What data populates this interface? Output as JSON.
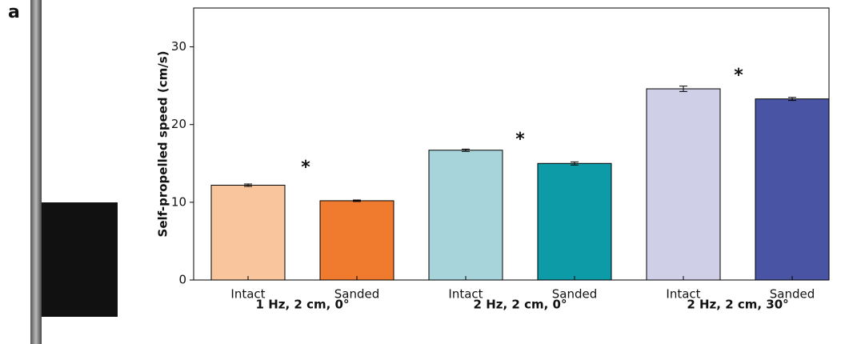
{
  "panel_label": "a",
  "chart_data": {
    "type": "bar",
    "y_label": "Self-propelled speed (cm/s)",
    "categories": [
      "Intact",
      "Sanded",
      "Intact",
      "Sanded",
      "Intact",
      "Sanded"
    ],
    "groups": [
      "1 Hz, 2 cm, 0°",
      "2 Hz, 2 cm, 0°",
      "2 Hz, 2 cm, 30°"
    ],
    "values": [
      12.2,
      10.2,
      16.7,
      15.0,
      24.6,
      23.3
    ],
    "errors": [
      0.15,
      0.1,
      0.15,
      0.2,
      0.35,
      0.2
    ],
    "colors": [
      "#f9c59c",
      "#f07a2d",
      "#a6d4da",
      "#0e9ba8",
      "#cfcfe8",
      "#4955a4"
    ],
    "annotations": [
      "*",
      "*",
      "*"
    ],
    "ylim": [
      0,
      35
    ],
    "yticks": [
      0,
      10,
      20,
      30
    ]
  }
}
